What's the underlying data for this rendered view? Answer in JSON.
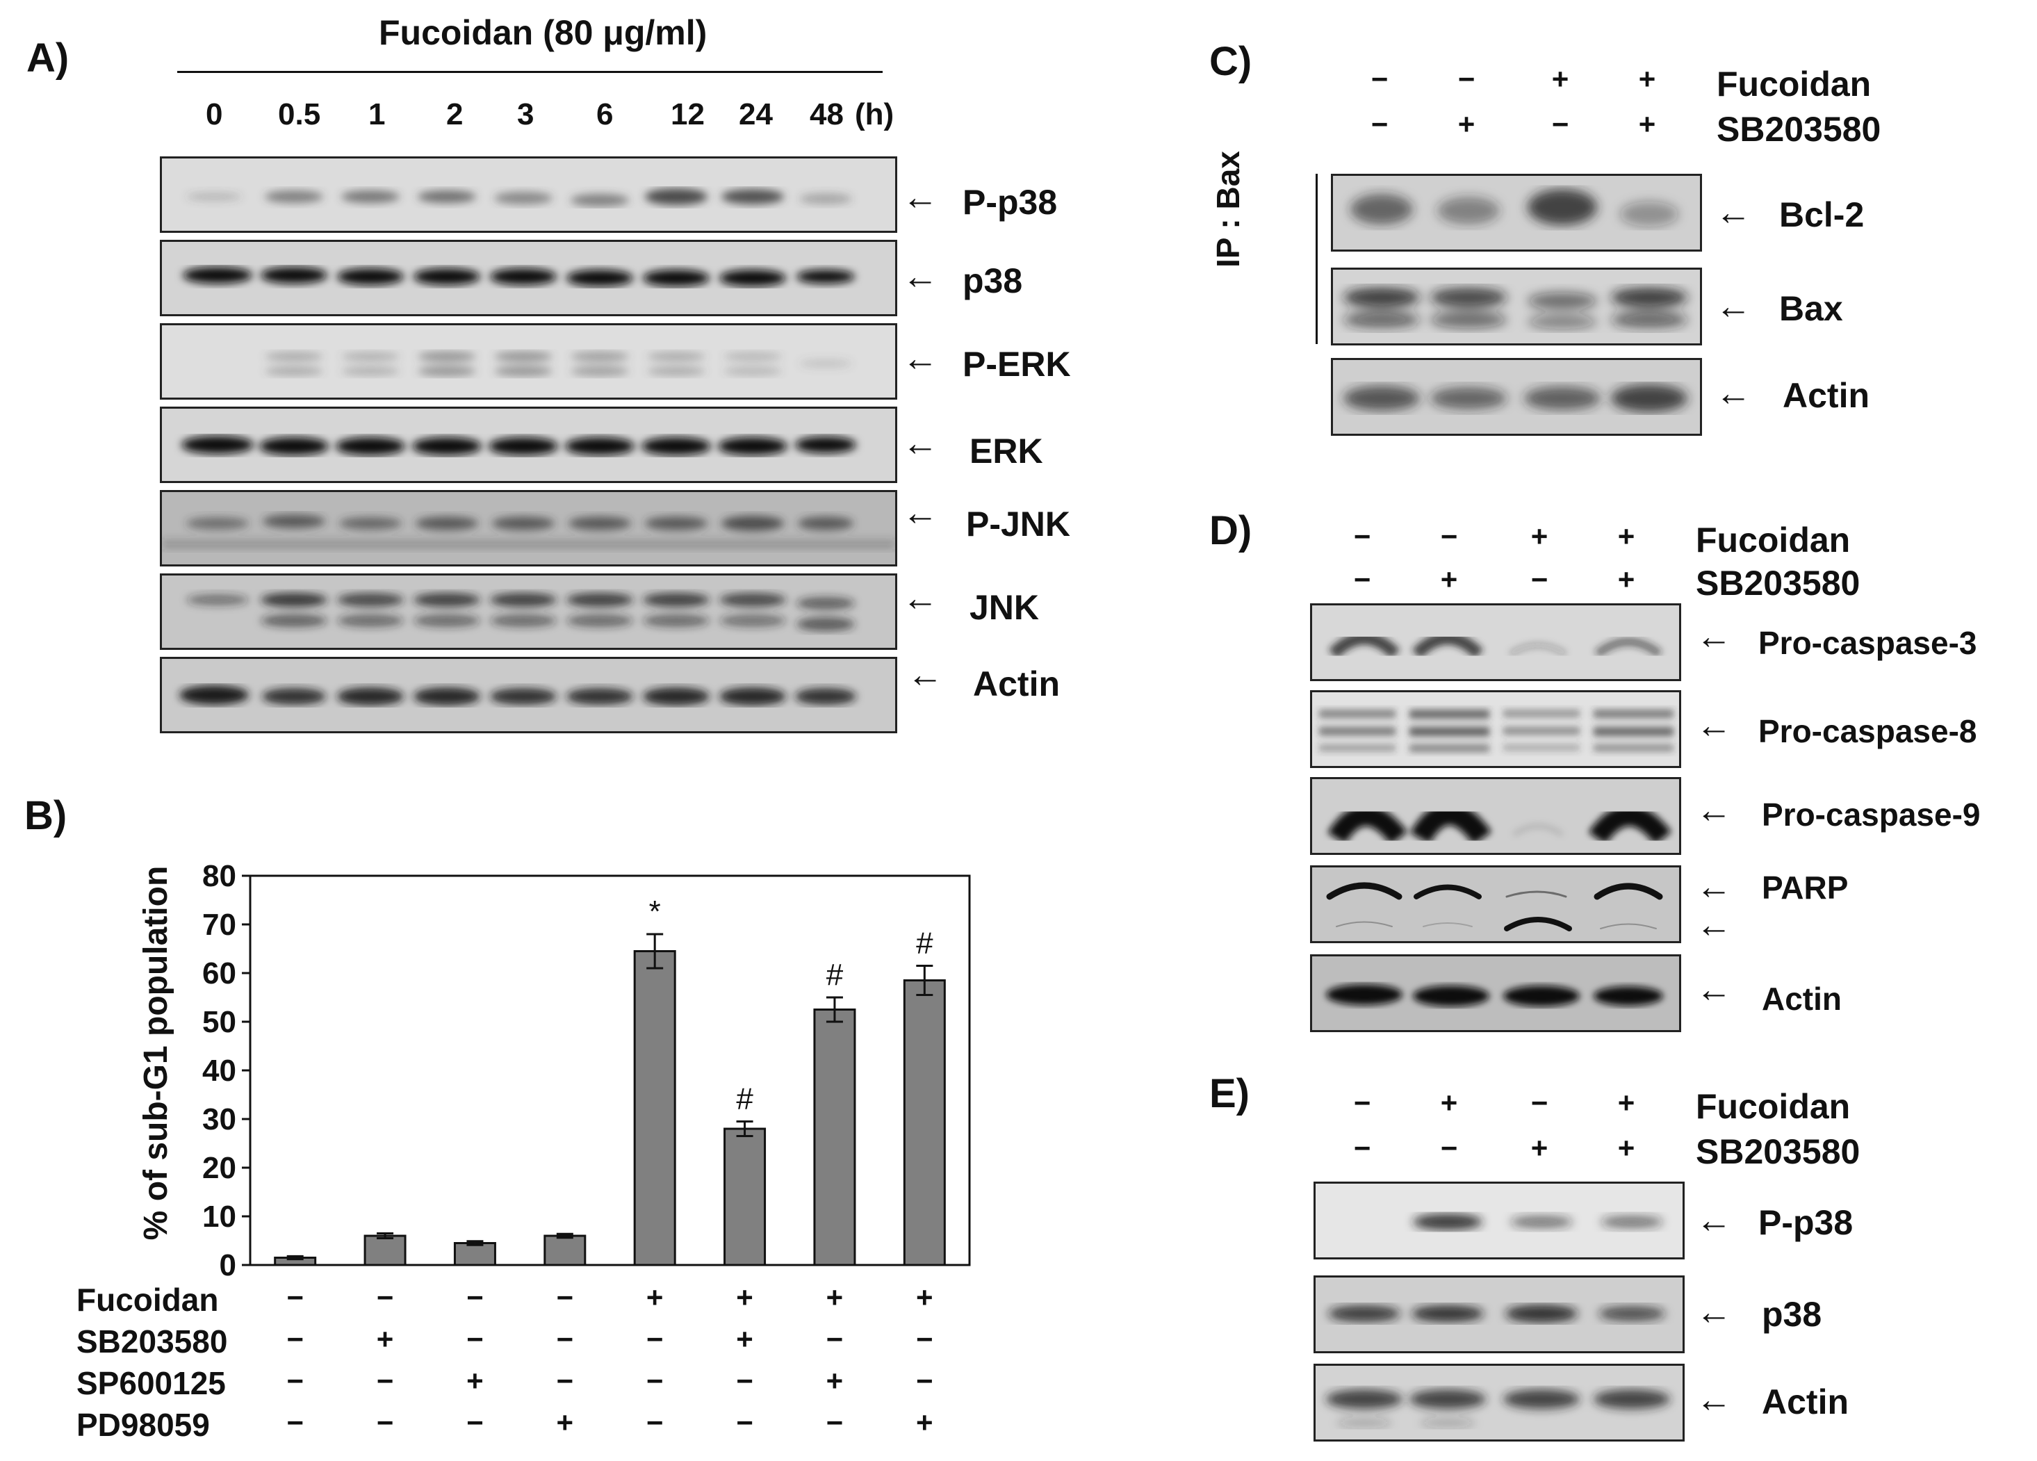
{
  "panel_a": {
    "letter": "A)",
    "treatment": "Fucoidan (80 μg/ml)",
    "timepoints": [
      "0",
      "0.5",
      "1",
      "2",
      "3",
      "6",
      "12",
      "24",
      "48"
    ],
    "time_unit": "(h)",
    "blots": [
      {
        "label": "P-p38"
      },
      {
        "label": "p38"
      },
      {
        "label": "P-ERK"
      },
      {
        "label": "ERK"
      },
      {
        "label": "P-JNK"
      },
      {
        "label": "JNK"
      },
      {
        "label": "Actin"
      }
    ]
  },
  "panel_b": {
    "letter": "B)",
    "row_labels": [
      "Fucoidan",
      "SB203580",
      "SP600125",
      "PD98059"
    ],
    "signs": [
      [
        "−",
        "−",
        "−",
        "−",
        "+",
        "+",
        "+",
        "+"
      ],
      [
        "−",
        "+",
        "−",
        "−",
        "−",
        "+",
        "−",
        "−"
      ],
      [
        "−",
        "−",
        "+",
        "−",
        "−",
        "−",
        "+",
        "−"
      ],
      [
        "−",
        "−",
        "−",
        "+",
        "−",
        "−",
        "−",
        "+"
      ]
    ]
  },
  "chart_data": {
    "type": "bar",
    "title": "",
    "xlabel": "",
    "ylabel": "% of sub-G1 population",
    "ylim": [
      0,
      80
    ],
    "yticks": [
      "0",
      "10",
      "20",
      "30",
      "40",
      "50",
      "60",
      "70",
      "80"
    ],
    "categories": [
      "1",
      "2",
      "3",
      "4",
      "5",
      "6",
      "7",
      "8"
    ],
    "values": [
      1.5,
      6,
      4.5,
      6,
      64.5,
      28,
      52.5,
      58.5
    ],
    "errors": [
      0.3,
      0.5,
      0.4,
      0.4,
      3.5,
      1.5,
      2.5,
      3
    ],
    "annotations": [
      "",
      "",
      "",
      "",
      "*",
      "#",
      "#",
      "#"
    ],
    "bar_color": "#808080"
  },
  "panel_c": {
    "letter": "C)",
    "row_labels": [
      "Fucoidan",
      "SB203580"
    ],
    "signs": [
      [
        "−",
        "−",
        "+",
        "+"
      ],
      [
        "−",
        "+",
        "−",
        "+"
      ]
    ],
    "ip_label": "IP : Bax",
    "blots": [
      {
        "label": "Bcl-2"
      },
      {
        "label": "Bax"
      },
      {
        "label": "Actin"
      }
    ]
  },
  "panel_d": {
    "letter": "D)",
    "row_labels": [
      "Fucoidan",
      "SB203580"
    ],
    "signs": [
      [
        "−",
        "−",
        "+",
        "+"
      ],
      [
        "−",
        "+",
        "−",
        "+"
      ]
    ],
    "blots": [
      {
        "label": "Pro-caspase-3"
      },
      {
        "label": "Pro-caspase-8"
      },
      {
        "label": "Pro-caspase-9"
      },
      {
        "label": "PARP"
      },
      {
        "label": "Actin"
      }
    ]
  },
  "panel_e": {
    "letter": "E)",
    "row_labels": [
      "Fucoidan",
      "SB203580"
    ],
    "signs": [
      [
        "−",
        "+",
        "−",
        "+"
      ],
      [
        "−",
        "−",
        "+",
        "+"
      ]
    ],
    "blots": [
      {
        "label": "P-p38"
      },
      {
        "label": "p38"
      },
      {
        "label": "Actin"
      }
    ]
  },
  "arrow_glyph": "←"
}
